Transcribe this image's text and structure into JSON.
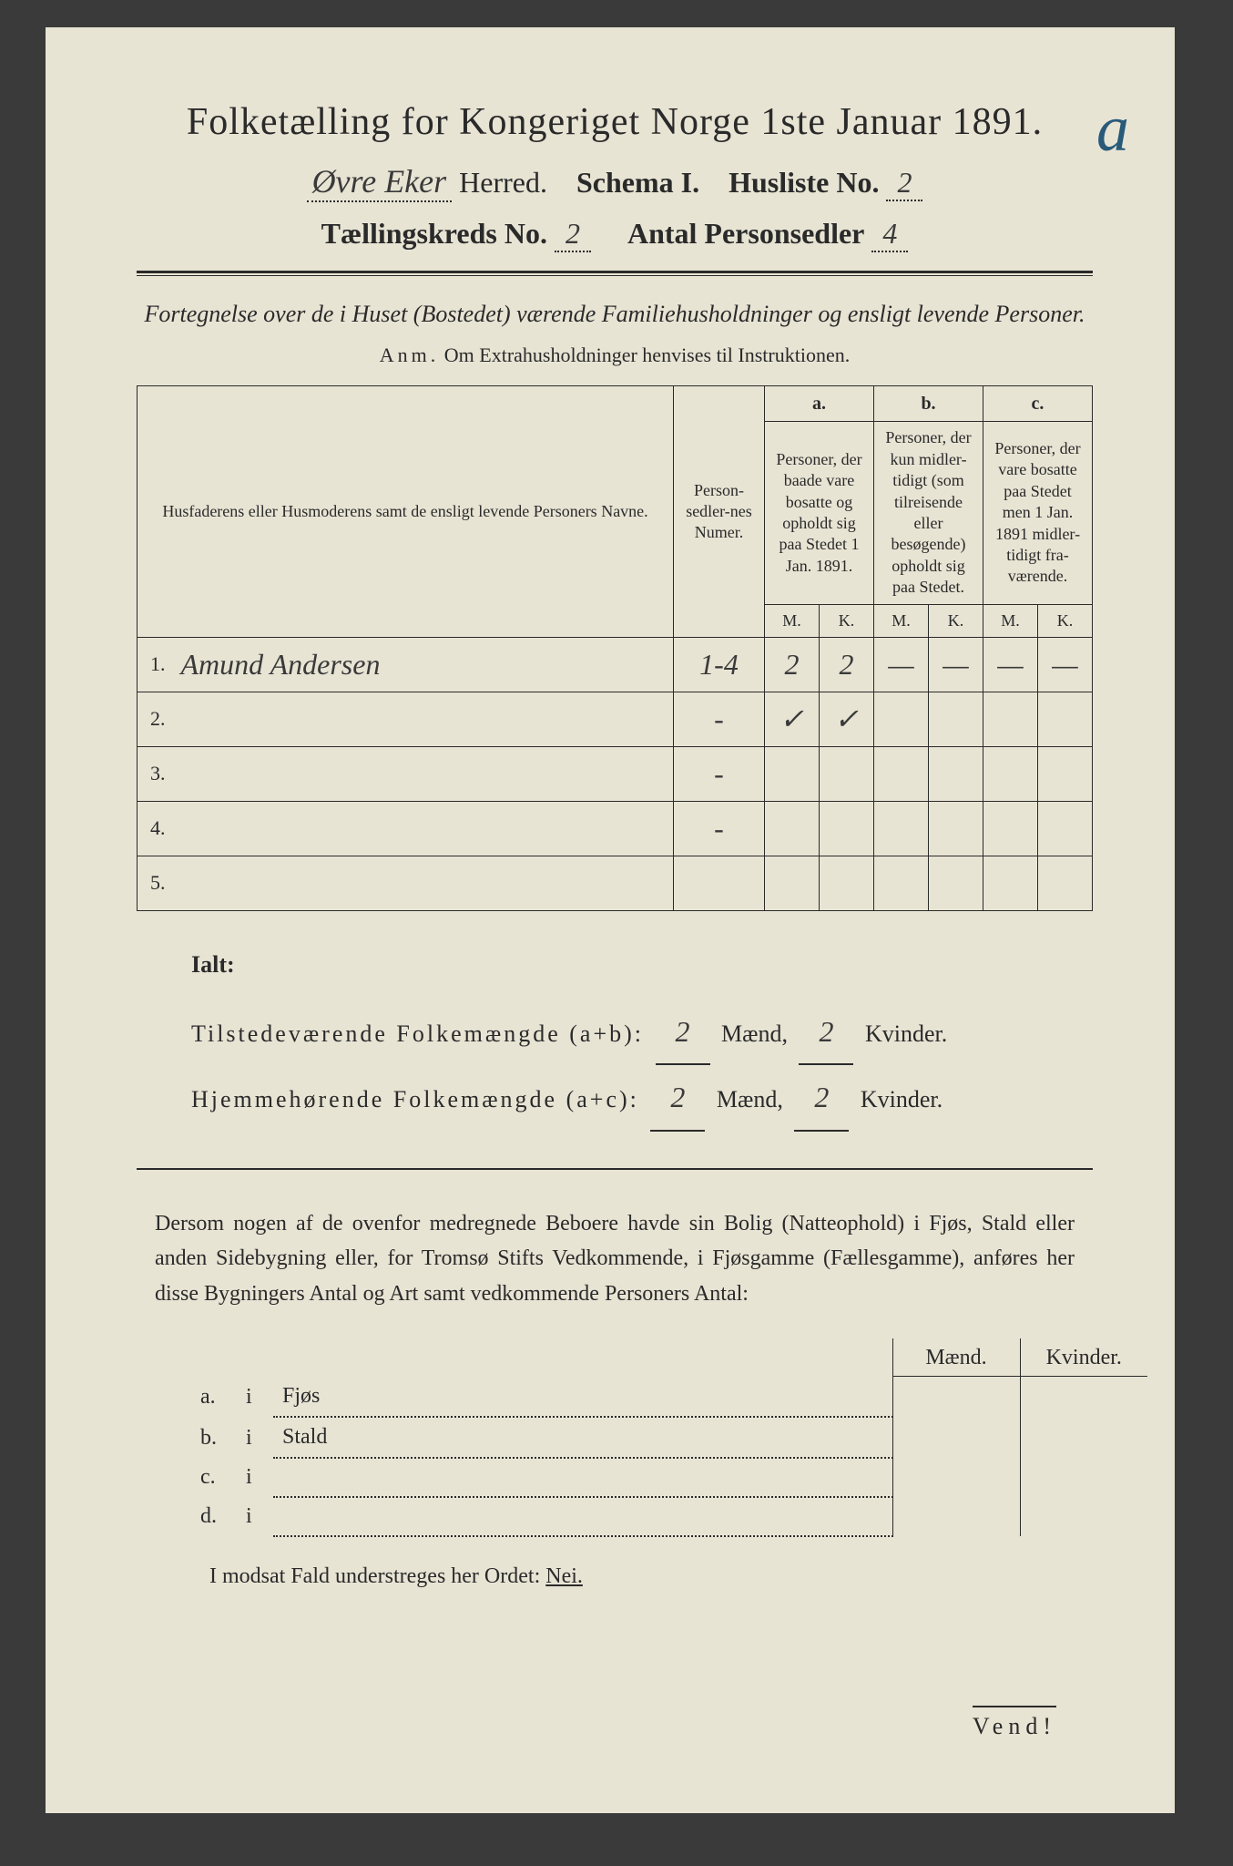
{
  "header": {
    "title": "Folketælling for Kongeriget Norge 1ste Januar 1891.",
    "herred_value": "Øvre Eker",
    "herred_label": "Herred.",
    "schema_label": "Schema I.",
    "husliste_label": "Husliste No.",
    "husliste_value": "2",
    "kreds_label": "Tællingskreds No.",
    "kreds_value": "2",
    "personsedler_label": "Antal Personsedler",
    "personsedler_value": "4"
  },
  "subtitle": "Fortegnelse over de i Huset (Bostedet) værende Familiehusholdninger og ensligt levende Personer.",
  "anm_label": "Anm.",
  "anm_text": "Om Extrahusholdninger henvises til Instruktionen.",
  "table": {
    "col_name": "Husfaderens eller Husmoderens samt de ensligt levende Personers Navne.",
    "col_numer": "Person-sedler-nes Numer.",
    "col_a_letter": "a.",
    "col_a": "Personer, der baade vare bosatte og opholdt sig paa Stedet 1 Jan. 1891.",
    "col_b_letter": "b.",
    "col_b": "Personer, der kun midler-tidigt (som tilreisende eller besøgende) opholdt sig paa Stedet.",
    "col_c_letter": "c.",
    "col_c": "Personer, der vare bosatte paa Stedet men 1 Jan. 1891 midler-tidigt fra-værende.",
    "M": "M.",
    "K": "K.",
    "rows": [
      {
        "n": "1.",
        "name": "Amund Andersen",
        "numer": "1-4",
        "aM": "2",
        "aK": "2",
        "bM": "—",
        "bK": "—",
        "cM": "—",
        "cK": "—"
      },
      {
        "n": "2.",
        "name": "",
        "numer": "-",
        "aM": "✓",
        "aK": "✓",
        "bM": "",
        "bK": "",
        "cM": "",
        "cK": ""
      },
      {
        "n": "3.",
        "name": "",
        "numer": "-",
        "aM": "",
        "aK": "",
        "bM": "",
        "bK": "",
        "cM": "",
        "cK": ""
      },
      {
        "n": "4.",
        "name": "",
        "numer": "-",
        "aM": "",
        "aK": "",
        "bM": "",
        "bK": "",
        "cM": "",
        "cK": ""
      },
      {
        "n": "5.",
        "name": "",
        "numer": "",
        "aM": "",
        "aK": "",
        "bM": "",
        "bK": "",
        "cM": "",
        "cK": ""
      }
    ]
  },
  "totals": {
    "ialt": "Ialt:",
    "line1_label": "Tilstedeværende Folkemængde (a+b):",
    "line2_label": "Hjemmehørende Folkemængde (a+c):",
    "maend": "Mænd,",
    "kvinder": "Kvinder.",
    "t_m": "2",
    "t_k": "2",
    "h_m": "2",
    "h_k": "2"
  },
  "sidebldg_text": "Dersom nogen af de ovenfor medregnede Beboere havde sin Bolig (Natteophold) i Fjøs, Stald eller anden Sidebygning eller, for Tromsø Stifts Vedkommende, i Fjøsgamme (Fællesgamme), anføres her disse Bygningers Antal og Art samt vedkommende Personers Antal:",
  "sidebldg_table": {
    "maend": "Mænd.",
    "kvinder": "Kvinder.",
    "rows": [
      {
        "letter": "a.",
        "i": "i",
        "label": "Fjøs"
      },
      {
        "letter": "b.",
        "i": "i",
        "label": "Stald"
      },
      {
        "letter": "c.",
        "i": "i",
        "label": ""
      },
      {
        "letter": "d.",
        "i": "i",
        "label": ""
      }
    ]
  },
  "nei_line": "I modsat Fald understreges her Ordet:",
  "nei": "Nei.",
  "vend": "Vend!",
  "annotation": "a",
  "colors": {
    "paper": "#e8e4d4",
    "ink": "#2a2a2a",
    "pencil_blue": "#2a5a7a",
    "background": "#3a3a3a"
  }
}
